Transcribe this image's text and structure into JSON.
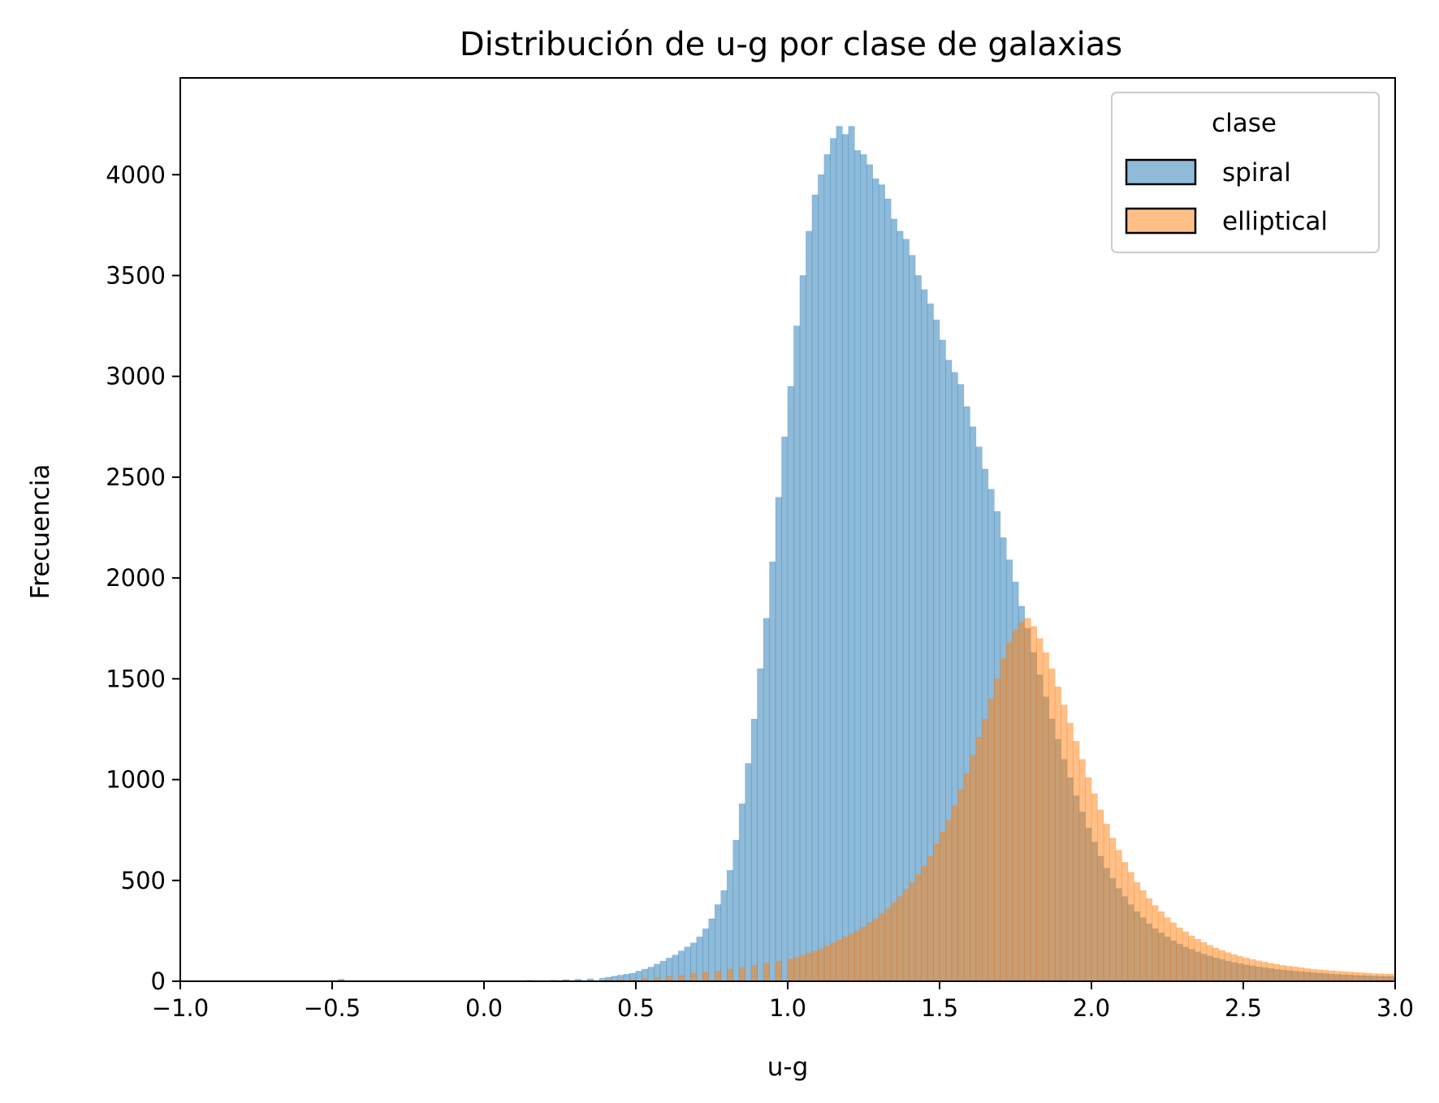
{
  "chart_data": {
    "type": "histogram",
    "title": "Distribución de u-g por clase de galaxias",
    "xlabel": "u-g",
    "ylabel": "Frecuencia",
    "xlim": [
      -1.0,
      3.0
    ],
    "ylim": [
      0,
      4480
    ],
    "xticks": [
      "−1.0",
      "−0.5",
      "0.0",
      "0.5",
      "1.0",
      "1.5",
      "2.0",
      "2.5",
      "3.0"
    ],
    "yticks": [
      "0",
      "500",
      "1000",
      "1500",
      "2000",
      "2500",
      "3000",
      "3500",
      "4000"
    ],
    "bin_width": 0.02,
    "grid": false,
    "legend": {
      "title": "clase",
      "placement": "top-right",
      "entries": [
        "spiral",
        "elliptical"
      ]
    },
    "series": [
      {
        "name": "spiral",
        "color": "#1f77b4",
        "opacity": 0.5,
        "bins": [
          [
            -0.48,
            10
          ],
          [
            0.14,
            5
          ],
          [
            0.22,
            5
          ],
          [
            0.26,
            8
          ],
          [
            0.3,
            10
          ],
          [
            0.34,
            12
          ],
          [
            0.38,
            15
          ],
          [
            0.4,
            20
          ],
          [
            0.42,
            25
          ],
          [
            0.44,
            30
          ],
          [
            0.46,
            35
          ],
          [
            0.48,
            40
          ],
          [
            0.5,
            50
          ],
          [
            0.52,
            60
          ],
          [
            0.54,
            70
          ],
          [
            0.56,
            85
          ],
          [
            0.58,
            100
          ],
          [
            0.6,
            115
          ],
          [
            0.62,
            130
          ],
          [
            0.64,
            150
          ],
          [
            0.66,
            170
          ],
          [
            0.68,
            190
          ],
          [
            0.7,
            220
          ],
          [
            0.72,
            260
          ],
          [
            0.74,
            310
          ],
          [
            0.76,
            380
          ],
          [
            0.78,
            450
          ],
          [
            0.8,
            550
          ],
          [
            0.82,
            700
          ],
          [
            0.84,
            880
          ],
          [
            0.86,
            1080
          ],
          [
            0.88,
            1300
          ],
          [
            0.9,
            1550
          ],
          [
            0.92,
            1800
          ],
          [
            0.94,
            2080
          ],
          [
            0.96,
            2400
          ],
          [
            0.98,
            2700
          ],
          [
            1.0,
            2950
          ],
          [
            1.02,
            3250
          ],
          [
            1.04,
            3500
          ],
          [
            1.06,
            3720
          ],
          [
            1.08,
            3900
          ],
          [
            1.1,
            4000
          ],
          [
            1.12,
            4100
          ],
          [
            1.14,
            4180
          ],
          [
            1.16,
            4240
          ],
          [
            1.18,
            4200
          ],
          [
            1.2,
            4240
          ],
          [
            1.22,
            4120
          ],
          [
            1.24,
            4100
          ],
          [
            1.26,
            4050
          ],
          [
            1.28,
            3980
          ],
          [
            1.3,
            3950
          ],
          [
            1.32,
            3880
          ],
          [
            1.34,
            3780
          ],
          [
            1.36,
            3720
          ],
          [
            1.38,
            3680
          ],
          [
            1.4,
            3600
          ],
          [
            1.42,
            3500
          ],
          [
            1.44,
            3430
          ],
          [
            1.46,
            3360
          ],
          [
            1.48,
            3280
          ],
          [
            1.5,
            3180
          ],
          [
            1.52,
            3080
          ],
          [
            1.54,
            3020
          ],
          [
            1.56,
            2960
          ],
          [
            1.58,
            2850
          ],
          [
            1.6,
            2750
          ],
          [
            1.62,
            2650
          ],
          [
            1.64,
            2540
          ],
          [
            1.66,
            2440
          ],
          [
            1.68,
            2330
          ],
          [
            1.7,
            2200
          ],
          [
            1.72,
            2090
          ],
          [
            1.74,
            1980
          ],
          [
            1.76,
            1860
          ],
          [
            1.78,
            1750
          ],
          [
            1.8,
            1630
          ],
          [
            1.82,
            1520
          ],
          [
            1.84,
            1410
          ],
          [
            1.86,
            1300
          ],
          [
            1.88,
            1200
          ],
          [
            1.9,
            1100
          ],
          [
            1.92,
            1010
          ],
          [
            1.94,
            920
          ],
          [
            1.96,
            840
          ],
          [
            1.98,
            760
          ],
          [
            2.0,
            690
          ],
          [
            2.02,
            620
          ],
          [
            2.04,
            560
          ],
          [
            2.06,
            510
          ],
          [
            2.08,
            460
          ],
          [
            2.1,
            420
          ],
          [
            2.12,
            380
          ],
          [
            2.14,
            345
          ],
          [
            2.16,
            315
          ],
          [
            2.18,
            285
          ],
          [
            2.2,
            260
          ],
          [
            2.22,
            240
          ],
          [
            2.24,
            220
          ],
          [
            2.26,
            200
          ],
          [
            2.28,
            185
          ],
          [
            2.3,
            170
          ],
          [
            2.32,
            158
          ],
          [
            2.34,
            146
          ],
          [
            2.36,
            135
          ],
          [
            2.38,
            125
          ],
          [
            2.4,
            116
          ],
          [
            2.42,
            108
          ],
          [
            2.44,
            100
          ],
          [
            2.46,
            93
          ],
          [
            2.48,
            87
          ],
          [
            2.5,
            81
          ],
          [
            2.52,
            76
          ],
          [
            2.54,
            71
          ],
          [
            2.56,
            67
          ],
          [
            2.58,
            63
          ],
          [
            2.6,
            59
          ],
          [
            2.62,
            56
          ],
          [
            2.64,
            53
          ],
          [
            2.66,
            50
          ],
          [
            2.68,
            47
          ],
          [
            2.7,
            45
          ],
          [
            2.72,
            42
          ],
          [
            2.74,
            40
          ],
          [
            2.76,
            38
          ],
          [
            2.78,
            36
          ],
          [
            2.8,
            34
          ],
          [
            2.82,
            32
          ],
          [
            2.84,
            31
          ],
          [
            2.86,
            29
          ],
          [
            2.88,
            28
          ],
          [
            2.9,
            27
          ],
          [
            2.92,
            26
          ],
          [
            2.94,
            25
          ],
          [
            2.96,
            24
          ],
          [
            2.98,
            23
          ]
        ]
      },
      {
        "name": "elliptical",
        "color": "#ff7f0e",
        "opacity": 0.5,
        "bins": [
          [
            0.4,
            5
          ],
          [
            0.44,
            8
          ],
          [
            0.48,
            10
          ],
          [
            0.52,
            15
          ],
          [
            0.56,
            20
          ],
          [
            0.6,
            25
          ],
          [
            0.64,
            30
          ],
          [
            0.68,
            40
          ],
          [
            0.72,
            45
          ],
          [
            0.76,
            50
          ],
          [
            0.8,
            60
          ],
          [
            0.84,
            70
          ],
          [
            0.88,
            80
          ],
          [
            0.92,
            90
          ],
          [
            0.96,
            100
          ],
          [
            1.0,
            110
          ],
          [
            1.02,
            120
          ],
          [
            1.04,
            130
          ],
          [
            1.06,
            140
          ],
          [
            1.08,
            150
          ],
          [
            1.1,
            160
          ],
          [
            1.12,
            175
          ],
          [
            1.14,
            190
          ],
          [
            1.16,
            205
          ],
          [
            1.18,
            220
          ],
          [
            1.2,
            235
          ],
          [
            1.22,
            250
          ],
          [
            1.24,
            270
          ],
          [
            1.26,
            290
          ],
          [
            1.28,
            310
          ],
          [
            1.3,
            335
          ],
          [
            1.32,
            360
          ],
          [
            1.34,
            390
          ],
          [
            1.36,
            420
          ],
          [
            1.38,
            455
          ],
          [
            1.4,
            490
          ],
          [
            1.42,
            530
          ],
          [
            1.44,
            570
          ],
          [
            1.46,
            620
          ],
          [
            1.48,
            680
          ],
          [
            1.5,
            740
          ],
          [
            1.52,
            800
          ],
          [
            1.54,
            870
          ],
          [
            1.56,
            950
          ],
          [
            1.58,
            1030
          ],
          [
            1.6,
            1120
          ],
          [
            1.62,
            1210
          ],
          [
            1.64,
            1300
          ],
          [
            1.66,
            1400
          ],
          [
            1.68,
            1500
          ],
          [
            1.7,
            1600
          ],
          [
            1.72,
            1680
          ],
          [
            1.74,
            1740
          ],
          [
            1.76,
            1780
          ],
          [
            1.78,
            1800
          ],
          [
            1.8,
            1760
          ],
          [
            1.82,
            1700
          ],
          [
            1.84,
            1630
          ],
          [
            1.86,
            1550
          ],
          [
            1.88,
            1460
          ],
          [
            1.9,
            1370
          ],
          [
            1.92,
            1280
          ],
          [
            1.94,
            1190
          ],
          [
            1.96,
            1100
          ],
          [
            1.98,
            1010
          ],
          [
            2.0,
            930
          ],
          [
            2.02,
            850
          ],
          [
            2.04,
            780
          ],
          [
            2.06,
            710
          ],
          [
            2.08,
            650
          ],
          [
            2.1,
            590
          ],
          [
            2.12,
            540
          ],
          [
            2.14,
            490
          ],
          [
            2.16,
            450
          ],
          [
            2.18,
            410
          ],
          [
            2.2,
            375
          ],
          [
            2.22,
            345
          ],
          [
            2.24,
            315
          ],
          [
            2.26,
            290
          ],
          [
            2.28,
            265
          ],
          [
            2.3,
            245
          ],
          [
            2.32,
            225
          ],
          [
            2.34,
            208
          ],
          [
            2.36,
            192
          ],
          [
            2.38,
            178
          ],
          [
            2.4,
            165
          ],
          [
            2.42,
            153
          ],
          [
            2.44,
            142
          ],
          [
            2.46,
            132
          ],
          [
            2.48,
            123
          ],
          [
            2.5,
            115
          ],
          [
            2.52,
            108
          ],
          [
            2.54,
            101
          ],
          [
            2.56,
            95
          ],
          [
            2.58,
            89
          ],
          [
            2.6,
            84
          ],
          [
            2.62,
            79
          ],
          [
            2.64,
            75
          ],
          [
            2.66,
            71
          ],
          [
            2.68,
            67
          ],
          [
            2.7,
            63
          ],
          [
            2.72,
            60
          ],
          [
            2.74,
            57
          ],
          [
            2.76,
            54
          ],
          [
            2.78,
            52
          ],
          [
            2.8,
            50
          ],
          [
            2.82,
            48
          ],
          [
            2.84,
            46
          ],
          [
            2.86,
            44
          ],
          [
            2.88,
            42
          ],
          [
            2.9,
            40
          ],
          [
            2.92,
            38
          ],
          [
            2.94,
            37
          ],
          [
            2.96,
            36
          ],
          [
            2.98,
            35
          ]
        ]
      }
    ]
  }
}
